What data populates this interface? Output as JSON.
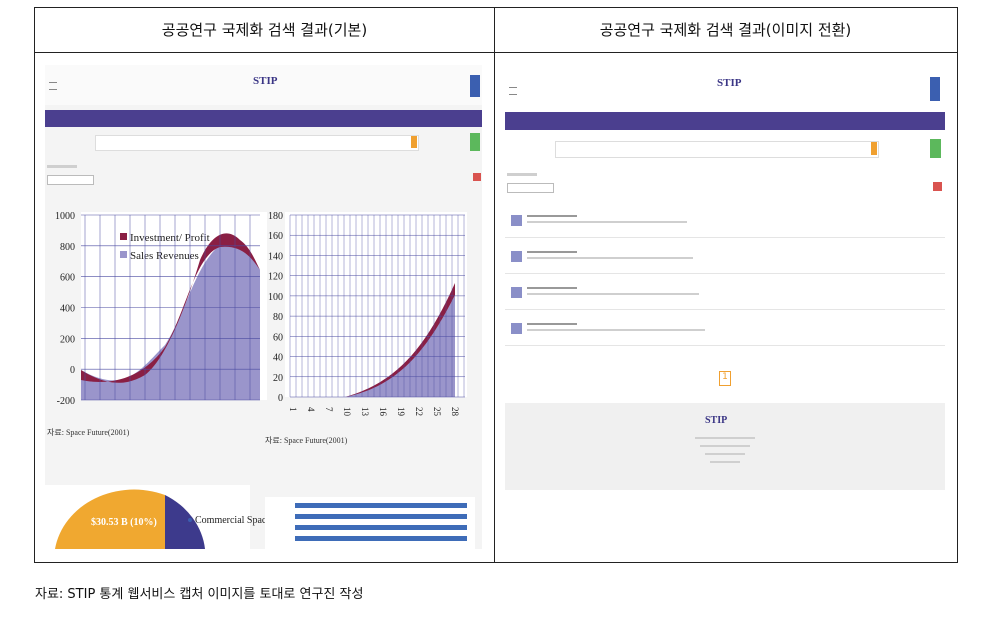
{
  "table": {
    "headers": [
      "공공연구 국제화 검색 결과(기본)",
      "공공연구 국제화 검색 결과(이미지 전환)"
    ]
  },
  "left_screenshot": {
    "logo": "STIP",
    "line_chart": {
      "y_labels": [
        "1000",
        "800",
        "600",
        "400",
        "200",
        "0",
        "-200"
      ],
      "legend": [
        "Investment/ Profit",
        "Sales Revenues"
      ],
      "source": "자료: Space Future(2001)"
    },
    "area_chart": {
      "y_labels": [
        "180",
        "160",
        "140",
        "120",
        "100",
        "80",
        "60",
        "40",
        "20",
        "0"
      ],
      "x_labels": [
        "1",
        "4",
        "7",
        "10",
        "13",
        "16",
        "19",
        "22",
        "25",
        "28"
      ],
      "source": "자료: Space Future(2001)"
    },
    "pie": {
      "label": "$30.53 B (10%)",
      "legend": "Commercial Space Products and Services"
    }
  },
  "right_screenshot": {
    "logo": "STIP",
    "pagination": "1"
  },
  "caption": "자료: STIP 통계 웹서비스 캡처 이미지를 토대로 연구진 작성"
}
